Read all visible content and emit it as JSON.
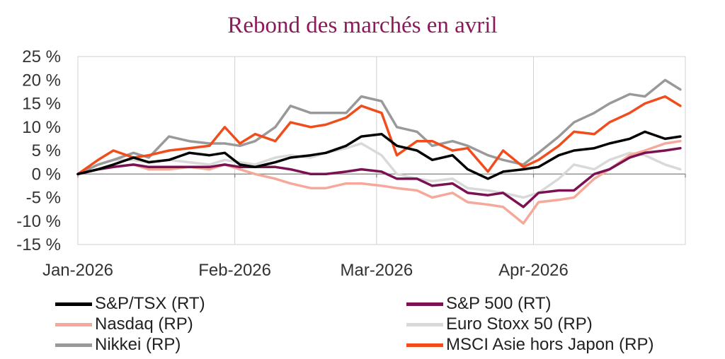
{
  "chart_data": {
    "type": "line",
    "title": "Rebond des marchés en avril",
    "xlabel": "",
    "ylabel": "",
    "x_tick_labels": [
      "Jan-2026",
      "Feb-2026",
      "Mar-2026",
      "Apr-2026"
    ],
    "x_tick_dates": [
      "2026-01-01",
      "2026-02-01",
      "2026-03-01",
      "2026-04-01"
    ],
    "x_range": [
      "2026-01-01",
      "2026-05-01"
    ],
    "y_tick_labels": [
      "25 %",
      "20 %",
      "15 %",
      "10 %",
      "5 %",
      "0 %",
      "-5 %",
      "-10 %",
      "-15 %"
    ],
    "ylim": [
      -15,
      25
    ],
    "y_ticks": [
      25,
      20,
      15,
      10,
      5,
      0,
      -5,
      -10,
      -15
    ],
    "grid": "vertical",
    "legend_position": "bottom",
    "series": [
      {
        "name": "S&P/TSX (RT)",
        "color": "#000000",
        "points": [
          [
            "2026-01-01",
            0
          ],
          [
            "2026-01-05",
            1
          ],
          [
            "2026-01-08",
            2
          ],
          [
            "2026-01-12",
            3.5
          ],
          [
            "2026-01-15",
            2.5
          ],
          [
            "2026-01-19",
            3
          ],
          [
            "2026-01-23",
            4.5
          ],
          [
            "2026-01-27",
            4
          ],
          [
            "2026-01-30",
            4.5
          ],
          [
            "2026-02-02",
            2
          ],
          [
            "2026-02-05",
            1.5
          ],
          [
            "2026-02-09",
            2.5
          ],
          [
            "2026-02-12",
            3.5
          ],
          [
            "2026-02-16",
            4
          ],
          [
            "2026-02-19",
            4.5
          ],
          [
            "2026-02-23",
            6
          ],
          [
            "2026-02-26",
            8
          ],
          [
            "2026-03-02",
            8.5
          ],
          [
            "2026-03-05",
            6
          ],
          [
            "2026-03-09",
            5
          ],
          [
            "2026-03-12",
            3
          ],
          [
            "2026-03-16",
            4
          ],
          [
            "2026-03-19",
            1
          ],
          [
            "2026-03-23",
            -1
          ],
          [
            "2026-03-26",
            0.5
          ],
          [
            "2026-03-30",
            1
          ],
          [
            "2026-04-02",
            1.5
          ],
          [
            "2026-04-06",
            4
          ],
          [
            "2026-04-09",
            5
          ],
          [
            "2026-04-13",
            5.5
          ],
          [
            "2026-04-16",
            6.5
          ],
          [
            "2026-04-20",
            7.5
          ],
          [
            "2026-04-23",
            9
          ],
          [
            "2026-04-27",
            7.5
          ],
          [
            "2026-04-30",
            8
          ]
        ]
      },
      {
        "name": "S&P 500 (RT)",
        "color": "#7b1152",
        "points": [
          [
            "2026-01-01",
            0
          ],
          [
            "2026-01-05",
            1
          ],
          [
            "2026-01-08",
            1.5
          ],
          [
            "2026-01-12",
            2
          ],
          [
            "2026-01-15",
            1.5
          ],
          [
            "2026-01-19",
            1.5
          ],
          [
            "2026-01-23",
            1.5
          ],
          [
            "2026-01-27",
            1.5
          ],
          [
            "2026-01-30",
            2
          ],
          [
            "2026-02-02",
            1.5
          ],
          [
            "2026-02-05",
            1.5
          ],
          [
            "2026-02-09",
            1.5
          ],
          [
            "2026-02-12",
            1
          ],
          [
            "2026-02-16",
            0
          ],
          [
            "2026-02-19",
            0
          ],
          [
            "2026-02-23",
            0.5
          ],
          [
            "2026-02-26",
            1
          ],
          [
            "2026-03-02",
            0.5
          ],
          [
            "2026-03-05",
            -1
          ],
          [
            "2026-03-09",
            -1
          ],
          [
            "2026-03-12",
            -2.5
          ],
          [
            "2026-03-16",
            -2
          ],
          [
            "2026-03-19",
            -4
          ],
          [
            "2026-03-23",
            -4.5
          ],
          [
            "2026-03-26",
            -4
          ],
          [
            "2026-03-30",
            -7
          ],
          [
            "2026-04-02",
            -4
          ],
          [
            "2026-04-06",
            -3.5
          ],
          [
            "2026-04-09",
            -3.5
          ],
          [
            "2026-04-13",
            0
          ],
          [
            "2026-04-16",
            1
          ],
          [
            "2026-04-20",
            3.5
          ],
          [
            "2026-04-23",
            4.5
          ],
          [
            "2026-04-27",
            5
          ],
          [
            "2026-04-30",
            5.5
          ]
        ]
      },
      {
        "name": "Nasdaq (RP)",
        "color": "#f4a99a",
        "points": [
          [
            "2026-01-01",
            0
          ],
          [
            "2026-01-05",
            1
          ],
          [
            "2026-01-08",
            1.5
          ],
          [
            "2026-01-12",
            2
          ],
          [
            "2026-01-15",
            1
          ],
          [
            "2026-01-19",
            1
          ],
          [
            "2026-01-23",
            1.5
          ],
          [
            "2026-01-27",
            1
          ],
          [
            "2026-01-30",
            2
          ],
          [
            "2026-02-02",
            1
          ],
          [
            "2026-02-05",
            0
          ],
          [
            "2026-02-09",
            -1
          ],
          [
            "2026-02-12",
            -2
          ],
          [
            "2026-02-16",
            -3
          ],
          [
            "2026-02-19",
            -3
          ],
          [
            "2026-02-23",
            -2
          ],
          [
            "2026-02-26",
            -2
          ],
          [
            "2026-03-02",
            -2.5
          ],
          [
            "2026-03-05",
            -3
          ],
          [
            "2026-03-09",
            -3.5
          ],
          [
            "2026-03-12",
            -5
          ],
          [
            "2026-03-16",
            -4
          ],
          [
            "2026-03-19",
            -6
          ],
          [
            "2026-03-23",
            -6.5
          ],
          [
            "2026-03-26",
            -7
          ],
          [
            "2026-03-30",
            -10.5
          ],
          [
            "2026-04-02",
            -6
          ],
          [
            "2026-04-06",
            -5.5
          ],
          [
            "2026-04-09",
            -5
          ],
          [
            "2026-04-13",
            -1
          ],
          [
            "2026-04-16",
            1
          ],
          [
            "2026-04-20",
            4
          ],
          [
            "2026-04-23",
            5
          ],
          [
            "2026-04-27",
            6.5
          ],
          [
            "2026-04-30",
            7
          ]
        ]
      },
      {
        "name": "Euro Stoxx 50 (RP)",
        "color": "#d9d9d9",
        "points": [
          [
            "2026-01-01",
            0
          ],
          [
            "2026-01-05",
            2
          ],
          [
            "2026-01-08",
            3
          ],
          [
            "2026-01-12",
            3
          ],
          [
            "2026-01-15",
            2.5
          ],
          [
            "2026-01-19",
            3
          ],
          [
            "2026-01-23",
            2.5
          ],
          [
            "2026-01-27",
            2
          ],
          [
            "2026-01-30",
            3
          ],
          [
            "2026-02-02",
            2.5
          ],
          [
            "2026-02-05",
            2
          ],
          [
            "2026-02-09",
            3.5
          ],
          [
            "2026-02-12",
            4
          ],
          [
            "2026-02-16",
            3.5
          ],
          [
            "2026-02-19",
            4.5
          ],
          [
            "2026-02-23",
            5.5
          ],
          [
            "2026-02-26",
            6.5
          ],
          [
            "2026-03-02",
            4
          ],
          [
            "2026-03-05",
            0
          ],
          [
            "2026-03-09",
            -1
          ],
          [
            "2026-03-12",
            -1.5
          ],
          [
            "2026-03-16",
            -1
          ],
          [
            "2026-03-19",
            -3
          ],
          [
            "2026-03-23",
            -3.5
          ],
          [
            "2026-03-26",
            -4
          ],
          [
            "2026-03-30",
            -5
          ],
          [
            "2026-04-02",
            -4
          ],
          [
            "2026-04-06",
            -1
          ],
          [
            "2026-04-09",
            2
          ],
          [
            "2026-04-13",
            1
          ],
          [
            "2026-04-16",
            3
          ],
          [
            "2026-04-20",
            4.5
          ],
          [
            "2026-04-23",
            4
          ],
          [
            "2026-04-27",
            2
          ],
          [
            "2026-04-30",
            1
          ]
        ]
      },
      {
        "name": "Nikkei (RP)",
        "color": "#999999",
        "points": [
          [
            "2026-01-01",
            0
          ],
          [
            "2026-01-05",
            2
          ],
          [
            "2026-01-08",
            3
          ],
          [
            "2026-01-12",
            4.5
          ],
          [
            "2026-01-15",
            3.5
          ],
          [
            "2026-01-19",
            8
          ],
          [
            "2026-01-23",
            7
          ],
          [
            "2026-01-27",
            6.5
          ],
          [
            "2026-01-30",
            6.5
          ],
          [
            "2026-02-02",
            6
          ],
          [
            "2026-02-05",
            7
          ],
          [
            "2026-02-09",
            10
          ],
          [
            "2026-02-12",
            14.5
          ],
          [
            "2026-02-16",
            13
          ],
          [
            "2026-02-19",
            13
          ],
          [
            "2026-02-23",
            13
          ],
          [
            "2026-02-26",
            16.5
          ],
          [
            "2026-03-02",
            15.5
          ],
          [
            "2026-03-05",
            10
          ],
          [
            "2026-03-09",
            9
          ],
          [
            "2026-03-12",
            6
          ],
          [
            "2026-03-16",
            7
          ],
          [
            "2026-03-19",
            6
          ],
          [
            "2026-03-23",
            4
          ],
          [
            "2026-03-26",
            3
          ],
          [
            "2026-03-30",
            2
          ],
          [
            "2026-04-02",
            4.5
          ],
          [
            "2026-04-06",
            8
          ],
          [
            "2026-04-09",
            11
          ],
          [
            "2026-04-13",
            13
          ],
          [
            "2026-04-16",
            15
          ],
          [
            "2026-04-20",
            17
          ],
          [
            "2026-04-23",
            16.5
          ],
          [
            "2026-04-27",
            20
          ],
          [
            "2026-04-30",
            18
          ]
        ]
      },
      {
        "name": "MSCI Asie hors Japon (RP)",
        "color": "#f04c1c",
        "points": [
          [
            "2026-01-01",
            0
          ],
          [
            "2026-01-05",
            3
          ],
          [
            "2026-01-08",
            5
          ],
          [
            "2026-01-12",
            3.5
          ],
          [
            "2026-01-15",
            4
          ],
          [
            "2026-01-19",
            5
          ],
          [
            "2026-01-23",
            5.5
          ],
          [
            "2026-01-27",
            6
          ],
          [
            "2026-01-30",
            10
          ],
          [
            "2026-02-02",
            6.5
          ],
          [
            "2026-02-05",
            8.5
          ],
          [
            "2026-02-09",
            7
          ],
          [
            "2026-02-12",
            11
          ],
          [
            "2026-02-16",
            10
          ],
          [
            "2026-02-19",
            10.5
          ],
          [
            "2026-02-23",
            12
          ],
          [
            "2026-02-26",
            14.5
          ],
          [
            "2026-03-02",
            13
          ],
          [
            "2026-03-05",
            4
          ],
          [
            "2026-03-09",
            7
          ],
          [
            "2026-03-12",
            7
          ],
          [
            "2026-03-16",
            5
          ],
          [
            "2026-03-19",
            5.5
          ],
          [
            "2026-03-23",
            0.5
          ],
          [
            "2026-03-26",
            5
          ],
          [
            "2026-03-30",
            1.5
          ],
          [
            "2026-04-02",
            3
          ],
          [
            "2026-04-06",
            6
          ],
          [
            "2026-04-09",
            9
          ],
          [
            "2026-04-13",
            8.5
          ],
          [
            "2026-04-16",
            11
          ],
          [
            "2026-04-20",
            13
          ],
          [
            "2026-04-23",
            15
          ],
          [
            "2026-04-27",
            16.5
          ],
          [
            "2026-04-30",
            14.5
          ]
        ]
      }
    ]
  }
}
